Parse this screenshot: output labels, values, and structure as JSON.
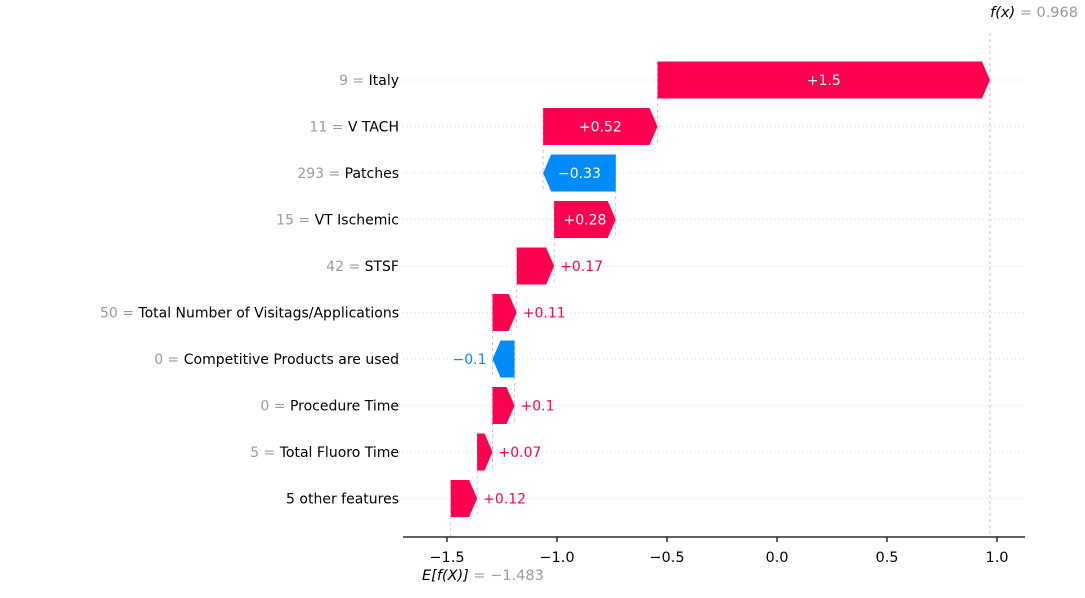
{
  "chart_data": {
    "type": "waterfall",
    "library_style": "shap-waterfall",
    "fx_label_math": "f(x)",
    "fx_label_value": " = 0.968",
    "ef_label_math": "E[f(X)]",
    "ef_label_value": " = −1.483",
    "fx_value": 0.968,
    "base_value": -1.483,
    "features": [
      {
        "feature_value": "9",
        "name": "Italy",
        "shap": 1.5,
        "display": "+1.5"
      },
      {
        "feature_value": "11",
        "name": "V TACH",
        "shap": 0.52,
        "display": "+0.52"
      },
      {
        "feature_value": "293",
        "name": "Patches",
        "shap": -0.33,
        "display": "−0.33"
      },
      {
        "feature_value": "15",
        "name": "VT Ischemic",
        "shap": 0.28,
        "display": "+0.28"
      },
      {
        "feature_value": "42",
        "name": "STSF",
        "shap": 0.17,
        "display": "+0.17"
      },
      {
        "feature_value": "50",
        "name": "Total Number of Visitags/Applications",
        "shap": 0.11,
        "display": "+0.11"
      },
      {
        "feature_value": "0",
        "name": "Competitive Products are used",
        "shap": -0.1,
        "display": "−0.1"
      },
      {
        "feature_value": "0",
        "name": "Procedure Time",
        "shap": 0.1,
        "display": "+0.1"
      },
      {
        "feature_value": "5",
        "name": "Total Fluoro Time",
        "shap": 0.07,
        "display": "+0.07"
      },
      {
        "feature_value": null,
        "name": "5 other features",
        "shap": 0.12,
        "display": "+0.12"
      }
    ],
    "x_axis": {
      "ticks": [
        -1.5,
        -1.0,
        -0.5,
        0.0,
        0.5,
        1.0
      ],
      "tick_labels": [
        "−1.5",
        "−1.0",
        "−0.5",
        "0.0",
        "0.5",
        "1.0"
      ],
      "xlim": [
        -1.7,
        1.13
      ]
    },
    "colors": {
      "positive": "#ff0051",
      "negative": "#008bfb",
      "muted_text": "#999999",
      "gridline": "#d9d9d9",
      "connector": "#c4c4c4",
      "axis": "#000000",
      "inside_label": "#ffffff"
    },
    "grid": "horizontal-dotted",
    "legend": "none",
    "title": ""
  }
}
